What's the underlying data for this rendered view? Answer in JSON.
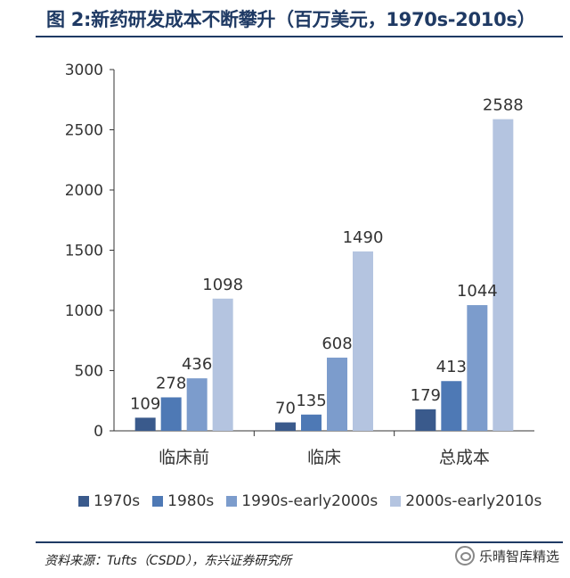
{
  "title": "图 2:新药研发成本不断攀升（百万美元，1970s-2010s）",
  "source": "资料来源：Tufts（CSDD），东兴证券研究所",
  "watermark": "乐晴智库精选",
  "chart_data": {
    "type": "bar",
    "categories": [
      "临床前",
      "临床",
      "总成本"
    ],
    "series": [
      {
        "name": "1970s",
        "values": [
          109,
          70,
          179
        ],
        "color": "#3a5a8c"
      },
      {
        "name": "1980s",
        "values": [
          278,
          135,
          413
        ],
        "color": "#4e79b5"
      },
      {
        "name": "1990s-early2000s",
        "values": [
          436,
          608,
          1044
        ],
        "color": "#7c9ccc"
      },
      {
        "name": "2000s-early2010s",
        "values": [
          1098,
          1490,
          2588
        ],
        "color": "#b4c4e0"
      }
    ],
    "ylim": [
      0,
      3000
    ],
    "yticks": [
      0,
      500,
      1000,
      1500,
      2000,
      2500,
      3000
    ],
    "legend": "bottom",
    "grid": false
  }
}
